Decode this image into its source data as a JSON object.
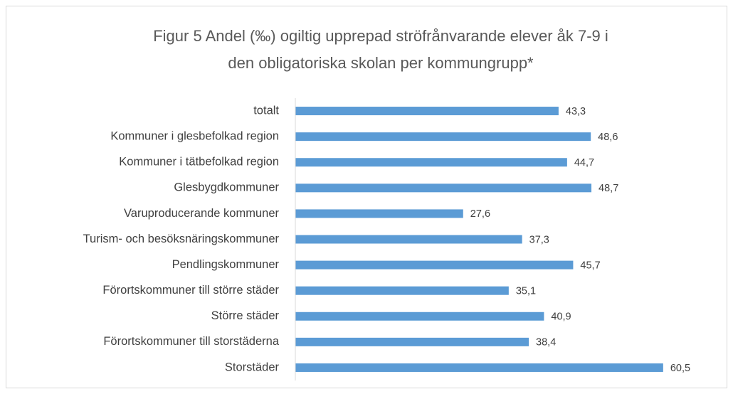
{
  "chart_data": {
    "type": "barh",
    "title": [
      "Figur 5 Andel (‰) ogiltig upprepad ströfrånvarande elever åk 7-9 i",
      "den obligatoriska skolan per kommungrupp*"
    ],
    "categories": [
      "totalt",
      "Kommuner i glesbefolkad region",
      "Kommuner i tätbefolkad region",
      "Glesbygdkommuner",
      "Varuproducerande kommuner",
      "Turism- och besöksnäringskommuner",
      "Pendlingskommuner",
      "Förortskommuner till större städer",
      "Större städer",
      "Förortskommuner till storstäderna",
      "Storstäder"
    ],
    "values": [
      43.3,
      48.6,
      44.7,
      48.7,
      27.6,
      37.3,
      45.7,
      35.1,
      40.9,
      38.4,
      60.5
    ],
    "value_labels": [
      "43,3",
      "48,6",
      "44,7",
      "48,7",
      "27,6",
      "37,3",
      "45,7",
      "35,1",
      "40,9",
      "38,4",
      "60,5"
    ],
    "color": "#5b9bd5",
    "xlim": [
      0,
      70
    ]
  }
}
